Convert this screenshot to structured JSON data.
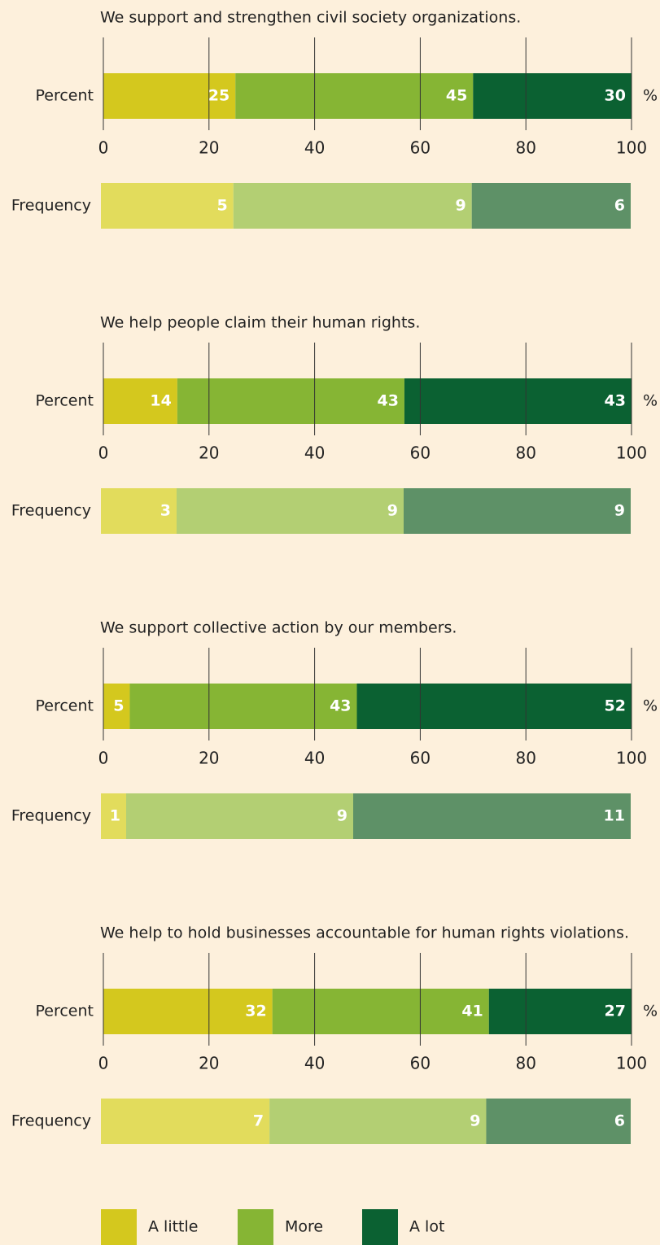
{
  "chart_data": [
    {
      "type": "stacked-bar",
      "title": "We support and strengthen civil society organizations.",
      "categories": [
        "Percent",
        "Frequency"
      ],
      "unit": "%",
      "series": [
        {
          "color": "#d4c81e",
          "light_color": "#e2dc5c",
          "values": [
            25,
            5
          ]
        },
        {
          "color": "#86b534",
          "light_color": "#b3cf73",
          "values": [
            45,
            9
          ]
        },
        {
          "color": "#0b6132",
          "light_color": "#5e9167",
          "values": [
            30,
            6
          ]
        }
      ],
      "xlim": [
        0,
        100
      ],
      "xticks": [
        0,
        20,
        40,
        60,
        80,
        100
      ]
    },
    {
      "type": "stacked-bar",
      "title": "We help people claim their human rights.",
      "categories": [
        "Percent",
        "Frequency"
      ],
      "unit": "%",
      "series": [
        {
          "color": "#d4c81e",
          "light_color": "#e2dc5c",
          "values": [
            14,
            3
          ]
        },
        {
          "color": "#86b534",
          "light_color": "#b3cf73",
          "values": [
            43,
            9
          ]
        },
        {
          "color": "#0b6132",
          "light_color": "#5e9167",
          "values": [
            43,
            9
          ]
        }
      ],
      "xlim": [
        0,
        100
      ],
      "xticks": [
        0,
        20,
        40,
        60,
        80,
        100
      ]
    },
    {
      "type": "stacked-bar",
      "title": "We support collective action by our members.",
      "categories": [
        "Percent",
        "Frequency"
      ],
      "unit": "%",
      "series": [
        {
          "color": "#d4c81e",
          "light_color": "#e2dc5c",
          "values": [
            5,
            1
          ]
        },
        {
          "color": "#86b534",
          "light_color": "#b3cf73",
          "values": [
            43,
            9
          ]
        },
        {
          "color": "#0b6132",
          "light_color": "#5e9167",
          "values": [
            52,
            11
          ]
        }
      ],
      "xlim": [
        0,
        100
      ],
      "xticks": [
        0,
        20,
        40,
        60,
        80,
        100
      ]
    },
    {
      "type": "stacked-bar",
      "title": "We help to hold businesses accountable for human rights violations.",
      "categories": [
        "Percent",
        "Frequency"
      ],
      "unit": "%",
      "series": [
        {
          "name": "A little",
          "color": "#d4c81e",
          "light_color": "#e2dc5c",
          "values": [
            32,
            7
          ]
        },
        {
          "name": "More",
          "color": "#86b534",
          "light_color": "#b3cf73",
          "values": [
            41,
            9
          ]
        },
        {
          "name": "A lot",
          "color": "#0b6132",
          "light_color": "#5e9167",
          "values": [
            27,
            6
          ]
        }
      ],
      "xlim": [
        0,
        100
      ],
      "xticks": [
        0,
        20,
        40,
        60,
        80,
        100
      ]
    }
  ]
}
